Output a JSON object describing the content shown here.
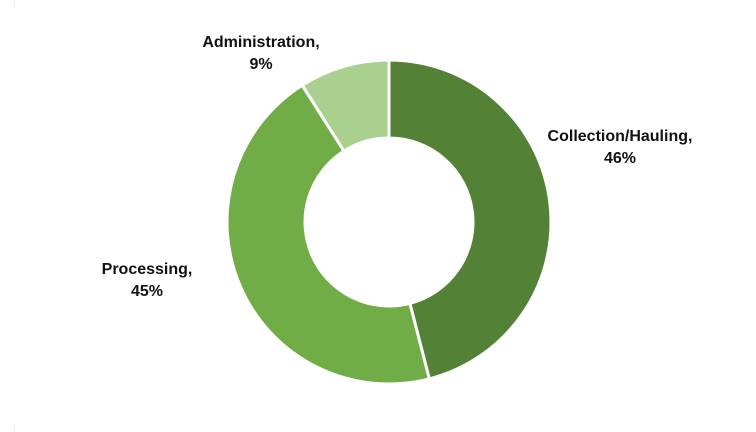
{
  "chart_data": {
    "type": "pie",
    "variant": "donut",
    "slices": [
      {
        "label": "Collection/Hauling,",
        "value": 46,
        "value_label": "46%",
        "color": "#538135"
      },
      {
        "label": "Processing,",
        "value": 45,
        "value_label": "45%",
        "color": "#70ad47"
      },
      {
        "label": "Administration,",
        "value": 9,
        "value_label": "9%",
        "color": "#a9d08e"
      }
    ],
    "start_angle_deg": 0,
    "direction": "clockwise",
    "legend": "none",
    "data_labels": "outside"
  }
}
